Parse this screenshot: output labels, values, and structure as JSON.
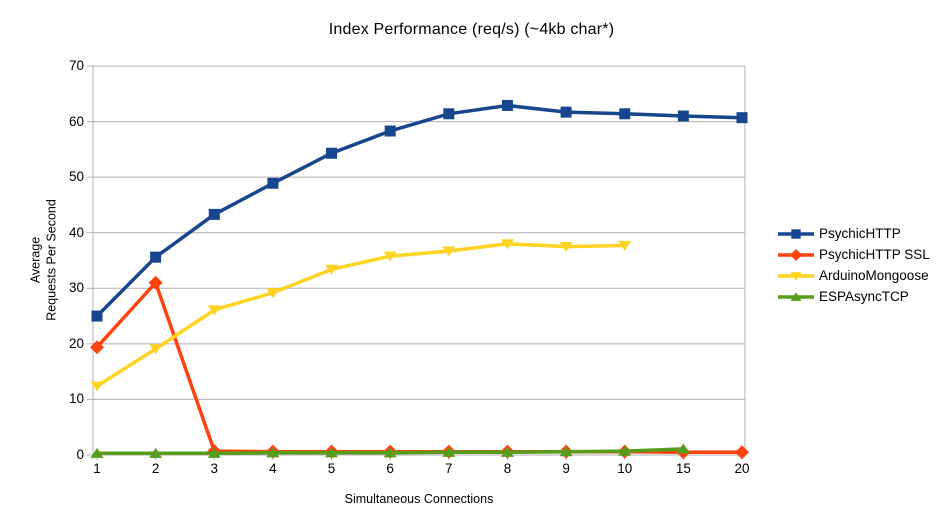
{
  "chart_data": {
    "type": "line",
    "title": "Index Performance (req/s) (~4kb char*)",
    "xlabel": "Simultaneous Connections",
    "ylabel": "Average\nRequests Per Second",
    "categories": [
      "1",
      "2",
      "3",
      "4",
      "5",
      "6",
      "7",
      "8",
      "9",
      "10",
      "15",
      "20"
    ],
    "yticks": [
      0,
      10,
      20,
      30,
      40,
      50,
      60,
      70
    ],
    "ylim": [
      0,
      70
    ],
    "grid": true,
    "legend_position": "right",
    "axis_color": "#b0b0b0",
    "series": [
      {
        "name": "PsychicHTTP",
        "color": "#17468F",
        "marker": "square",
        "values": [
          25.0,
          35.6,
          43.3,
          48.9,
          54.3,
          58.3,
          61.4,
          62.9,
          61.7,
          61.4,
          61.0,
          60.7
        ]
      },
      {
        "name": "PsychicHTTP SSL",
        "color": "#FF420E",
        "marker": "diamond",
        "values": [
          19.4,
          31.0,
          0.7,
          0.6,
          0.6,
          0.6,
          0.6,
          0.6,
          0.6,
          0.6,
          0.5,
          0.5
        ]
      },
      {
        "name": "ArduinoMongoose",
        "color": "#FFD320",
        "marker": "triangle-down",
        "values": [
          12.4,
          19.1,
          26.1,
          29.2,
          33.4,
          35.8,
          36.7,
          38.0,
          37.5,
          37.7,
          null,
          null
        ]
      },
      {
        "name": "ESPAsyncTCP",
        "color": "#579D1C",
        "marker": "triangle-up",
        "values": [
          0.3,
          0.3,
          0.3,
          0.4,
          0.4,
          0.4,
          0.5,
          0.5,
          0.6,
          0.7,
          1.1,
          null
        ]
      }
    ]
  }
}
